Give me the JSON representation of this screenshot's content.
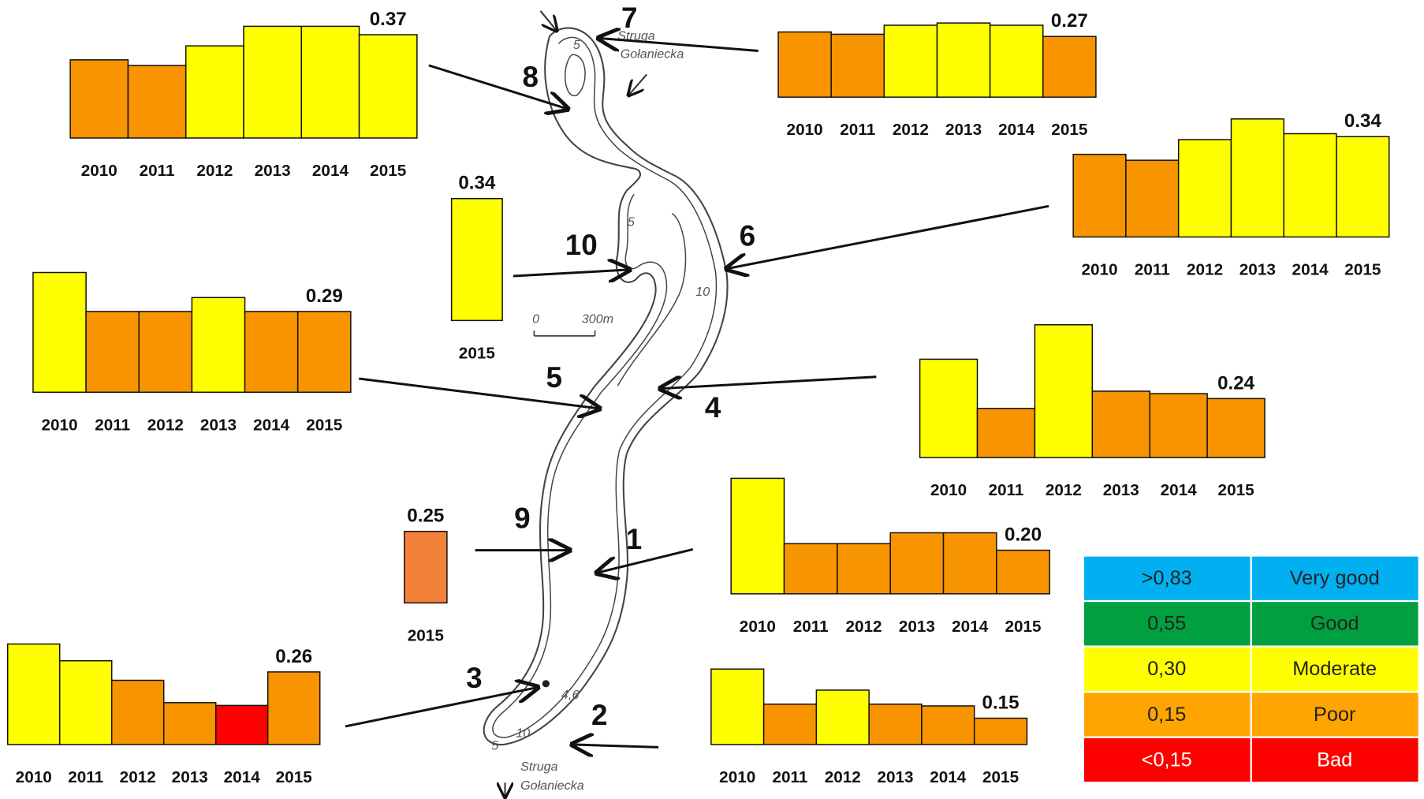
{
  "chart_data": [
    {
      "type": "bar",
      "label": "8",
      "categories": [
        "2010",
        "2011",
        "2012",
        "2013",
        "2014",
        "2015"
      ],
      "values": [
        0.28,
        0.26,
        0.33,
        0.4,
        0.4,
        0.37
      ],
      "value_labels": [
        null,
        null,
        null,
        null,
        null,
        "0.37"
      ],
      "colors": [
        "#f79400",
        "#f79400",
        "#ffff00",
        "#ffff00",
        "#ffff00",
        "#ffff00"
      ],
      "ylim": [
        0,
        0.4
      ]
    },
    {
      "type": "bar",
      "label": "7",
      "categories": [
        "2010",
        "2011",
        "2012",
        "2013",
        "2014",
        "2015"
      ],
      "values": [
        0.29,
        0.28,
        0.32,
        0.33,
        0.32,
        0.27
      ],
      "value_labels": [
        null,
        null,
        null,
        null,
        null,
        "0.27"
      ],
      "colors": [
        "#f79400",
        "#f79400",
        "#ffff00",
        "#ffff00",
        "#ffff00",
        "#f79400"
      ],
      "ylim": [
        0,
        0.4
      ]
    },
    {
      "type": "bar",
      "label": "10",
      "categories": [
        "2015"
      ],
      "values": [
        0.34
      ],
      "value_labels": [
        "0.34"
      ],
      "colors": [
        "#ffff00"
      ],
      "ylim": [
        0,
        0.4
      ]
    },
    {
      "type": "bar",
      "label": "6",
      "categories": [
        "2010",
        "2011",
        "2012",
        "2013",
        "2014",
        "2015"
      ],
      "values": [
        0.28,
        0.26,
        0.33,
        0.4,
        0.35,
        0.34
      ],
      "value_labels": [
        null,
        null,
        null,
        null,
        null,
        "0.34"
      ],
      "colors": [
        "#f79400",
        "#f79400",
        "#ffff00",
        "#ffff00",
        "#ffff00",
        "#ffff00"
      ],
      "ylim": [
        0,
        0.4
      ]
    },
    {
      "type": "bar",
      "label": "5",
      "categories": [
        "2010",
        "2011",
        "2012",
        "2013",
        "2014",
        "2015"
      ],
      "values": [
        0.43,
        0.29,
        0.29,
        0.34,
        0.29,
        0.29
      ],
      "value_labels": [
        null,
        null,
        null,
        null,
        null,
        "0.29"
      ],
      "colors": [
        "#ffff00",
        "#f79400",
        "#f79400",
        "#ffff00",
        "#f79400",
        "#f79400"
      ],
      "ylim": [
        0,
        0.45
      ]
    },
    {
      "type": "bar",
      "label": "4",
      "categories": [
        "2010",
        "2011",
        "2012",
        "2013",
        "2014",
        "2015"
      ],
      "values": [
        0.4,
        0.2,
        0.54,
        0.27,
        0.26,
        0.24
      ],
      "value_labels": [
        null,
        null,
        null,
        null,
        null,
        "0.24"
      ],
      "colors": [
        "#ffff00",
        "#f79400",
        "#ffff00",
        "#f79400",
        "#f79400",
        "#f79400"
      ],
      "ylim": [
        0,
        0.55
      ]
    },
    {
      "type": "bar",
      "label": "9",
      "categories": [
        "2015"
      ],
      "values": [
        0.25
      ],
      "value_labels": [
        "0.25"
      ],
      "colors": [
        "#f4813a"
      ],
      "ylim": [
        0,
        0.4
      ]
    },
    {
      "type": "bar",
      "label": "1",
      "categories": [
        "2010",
        "2011",
        "2012",
        "2013",
        "2014",
        "2015"
      ],
      "values": [
        0.53,
        0.23,
        0.23,
        0.28,
        0.28,
        0.2
      ],
      "value_labels": [
        null,
        null,
        null,
        null,
        null,
        "0.20"
      ],
      "colors": [
        "#ffff00",
        "#f79400",
        "#f79400",
        "#f79400",
        "#f79400",
        "#f79400"
      ],
      "ylim": [
        0,
        0.55
      ]
    },
    {
      "type": "bar",
      "label": "3",
      "categories": [
        "2010",
        "2011",
        "2012",
        "2013",
        "2014",
        "2015"
      ],
      "values": [
        0.36,
        0.3,
        0.23,
        0.15,
        0.14,
        0.26
      ],
      "value_labels": [
        null,
        null,
        null,
        null,
        null,
        "0.26"
      ],
      "colors": [
        "#ffff00",
        "#ffff00",
        "#f79400",
        "#f79400",
        "#ff0000",
        "#f79400"
      ],
      "ylim": [
        0,
        0.4
      ]
    },
    {
      "type": "bar",
      "label": "2",
      "categories": [
        "2010",
        "2011",
        "2012",
        "2013",
        "2014",
        "2015"
      ],
      "values": [
        0.43,
        0.23,
        0.31,
        0.23,
        0.22,
        0.15
      ],
      "value_labels": [
        null,
        null,
        null,
        null,
        null,
        "0.15"
      ],
      "colors": [
        "#ffff00",
        "#f79400",
        "#ffff00",
        "#f79400",
        "#f79400",
        "#f79400"
      ],
      "ylim": [
        0,
        0.45
      ]
    }
  ],
  "map": {
    "labels": [
      "Struga",
      "Gołaniecka",
      "Struga",
      "Gołaniecka",
      "5",
      "5",
      "10",
      "10",
      "5",
      "4,6",
      "0",
      "300m"
    ]
  },
  "legend": {
    "rows": [
      {
        "threshold": ">0,83",
        "class": "Very good",
        "color": "#00b0f0"
      },
      {
        "threshold": "0,55",
        "class": "Good",
        "color": "#00a040"
      },
      {
        "threshold": "0,30",
        "class": "Moderate",
        "color": "#ffff00"
      },
      {
        "threshold": "0,15",
        "class": "Poor",
        "color": "#ffa500"
      },
      {
        "threshold": "<0,15",
        "class": "Bad",
        "color": "#ff0000"
      }
    ]
  }
}
